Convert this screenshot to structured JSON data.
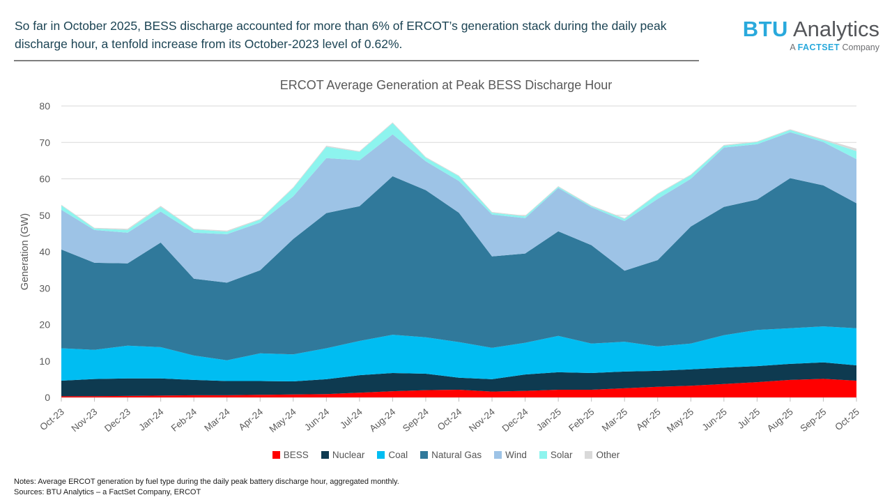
{
  "header": {
    "text": "So far in October 2025, BESS discharge accounted for more than 6% of ERCOT’s generation stack during the daily peak discharge hour, a tenfold increase from its October-2023 level of 0.62%."
  },
  "logo": {
    "primary": "BTU",
    "secondary": "Analytics",
    "tagline_prefix": "A",
    "tagline_brand": "FACTSET",
    "tagline_suffix": "Company",
    "accent_color": "#29A9DC",
    "text_color": "#54565A"
  },
  "chart_data": {
    "type": "area",
    "stacked": true,
    "title": "ERCOT Average Generation at Peak BESS Discharge Hour",
    "xlabel": "",
    "ylabel": "Generation (GW)",
    "ylim": [
      0,
      80
    ],
    "ytick_step": 10,
    "grid": true,
    "legend_position": "bottom",
    "categories": [
      "Oct-23",
      "Nov-23",
      "Dec-23",
      "Jan-24",
      "Feb-24",
      "Mar-24",
      "Apr-24",
      "May-24",
      "Jun-24",
      "Jul-24",
      "Aug-24",
      "Sep-24",
      "Oct-24",
      "Nov-24",
      "Dec-24",
      "Jan-25",
      "Feb-25",
      "Mar-25",
      "Apr-25",
      "May-25",
      "Jun-25",
      "Jul-25",
      "Aug-25",
      "Sep-25",
      "Oct-25"
    ],
    "series": [
      {
        "name": "BESS",
        "color": "#FF0000",
        "values": [
          0.3,
          0.35,
          0.4,
          0.5,
          0.6,
          0.6,
          0.7,
          0.8,
          0.9,
          1.3,
          1.7,
          2.0,
          2.1,
          1.6,
          1.8,
          2.1,
          2.1,
          2.5,
          2.9,
          3.2,
          3.7,
          4.2,
          4.8,
          5.1,
          4.6
        ]
      },
      {
        "name": "Nuclear",
        "color": "#0E3A50",
        "values": [
          4.3,
          4.7,
          4.8,
          4.7,
          4.2,
          3.9,
          3.8,
          3.6,
          4.1,
          4.8,
          5.0,
          4.5,
          3.3,
          3.4,
          4.5,
          4.8,
          4.6,
          4.6,
          4.4,
          4.5,
          4.5,
          4.4,
          4.4,
          4.5,
          4.2
        ]
      },
      {
        "name": "Coal",
        "color": "#00BDF2",
        "values": [
          8.9,
          8.0,
          9.0,
          8.6,
          6.7,
          5.7,
          7.6,
          7.4,
          8.5,
          9.4,
          10.5,
          10.0,
          9.8,
          8.6,
          8.7,
          10.0,
          8.1,
          8.2,
          6.7,
          7.1,
          8.9,
          9.9,
          9.8,
          9.9,
          10.2
        ]
      },
      {
        "name": "Natural Gas",
        "color": "#30799B",
        "values": [
          27.1,
          23.9,
          22.6,
          28.7,
          21.1,
          21.3,
          22.8,
          31.7,
          37.1,
          37.0,
          43.5,
          40.4,
          35.5,
          25.1,
          24.5,
          28.7,
          27.0,
          19.5,
          23.7,
          32.1,
          35.2,
          35.8,
          41.2,
          38.7,
          34.3
        ]
      },
      {
        "name": "Wind",
        "color": "#9DC3E6",
        "values": [
          10.9,
          9.0,
          8.4,
          8.5,
          12.6,
          13.3,
          13.1,
          11.7,
          15.1,
          12.6,
          11.5,
          7.9,
          8.7,
          11.5,
          9.7,
          11.9,
          10.4,
          13.6,
          16.8,
          13.1,
          16.3,
          15.2,
          12.6,
          11.9,
          12.1
        ]
      },
      {
        "name": "Solar",
        "color": "#8DF4EE",
        "values": [
          1.2,
          0.4,
          0.8,
          1.3,
          0.9,
          0.7,
          0.8,
          2.3,
          3.1,
          2.3,
          3.1,
          1.0,
          1.3,
          0.5,
          0.5,
          0.3,
          0.3,
          0.6,
          1.3,
          1.0,
          0.5,
          0.6,
          0.6,
          0.5,
          2.2
        ]
      },
      {
        "name": "Other",
        "color": "#D9D9D9",
        "values": [
          0.2,
          0.2,
          0.3,
          0.3,
          0.2,
          0.3,
          0.2,
          0.2,
          0.3,
          0.2,
          0.2,
          0.2,
          0.2,
          0.2,
          0.2,
          0.2,
          0.2,
          0.2,
          0.2,
          0.2,
          0.2,
          0.2,
          0.2,
          0.3,
          0.7
        ]
      }
    ]
  },
  "notes": {
    "line1": "Notes: Average ERCOT generation by fuel type during the daily peak battery discharge hour, aggregated monthly.",
    "line2": "Sources: BTU Analytics – a FactSet Company, ERCOT"
  }
}
